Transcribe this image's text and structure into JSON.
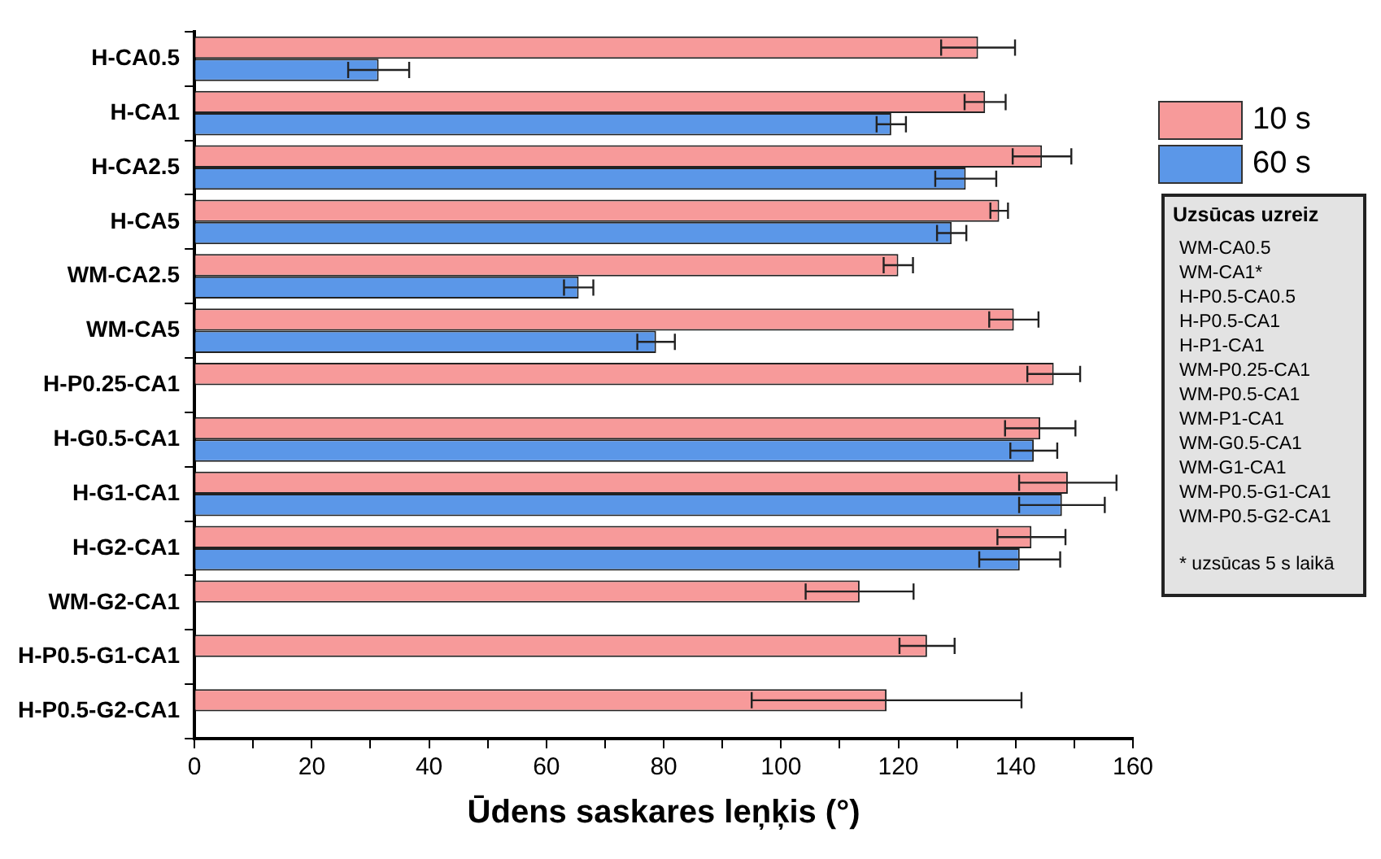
{
  "chart_data": {
    "type": "bar",
    "orientation": "horizontal",
    "xlabel": "Ūdens saskares leņķis (°)",
    "categories": [
      "H-CA0.5",
      "H-CA1",
      "H-CA2.5",
      "H-CA5",
      "WM-CA2.5",
      "WM-CA5",
      "H-P0.25-CA1",
      "H-G0.5-CA1",
      "H-G1-CA1",
      "H-G2-CA1",
      "WM-G2-CA1",
      "H-P0.5-G1-CA1",
      "H-P0.5-G2-CA1"
    ],
    "series": [
      {
        "name": "10 s",
        "color": "#f79a9a",
        "values": [
          133.6,
          134.8,
          144.5,
          137.2,
          120,
          139.7,
          146.5,
          144.2,
          148.9,
          142.7,
          113.4,
          124.9,
          118
        ],
        "errors": [
          6.3,
          3.5,
          5,
          1.5,
          2.5,
          4.2,
          4.5,
          6,
          8.3,
          5.8,
          9.2,
          4.7,
          23
        ]
      },
      {
        "name": "60 s",
        "color": "#5b97e8",
        "values": [
          31.4,
          118.8,
          131.5,
          129.1,
          65.5,
          78.7,
          null,
          143.1,
          147.9,
          140.7,
          null,
          null,
          null
        ],
        "errors": [
          5.2,
          2.5,
          5.2,
          2.5,
          2.5,
          3.2,
          null,
          4,
          7.3,
          6.9,
          null,
          null,
          null
        ]
      }
    ],
    "xlim": [
      0,
      160
    ],
    "xticks": [
      0,
      {
        "value": 10,
        "label": null
      },
      20,
      {
        "value": 30,
        "label": null
      },
      40,
      {
        "value": 50,
        "label": null
      },
      60,
      {
        "value": 70,
        "label": null
      },
      80,
      {
        "value": 90,
        "label": null
      },
      100,
      {
        "value": 110,
        "label": null
      },
      120,
      {
        "value": 130,
        "label": null
      },
      140,
      {
        "value": 150,
        "label": null
      },
      160
    ],
    "grid": false,
    "legend": "top right",
    "annotations": [
      "Uzsūcas uzreiz",
      "WM-CA0.5",
      "WM-CA1*",
      "H-P0.5-CA0.5",
      "H-P0.5-CA1",
      "H-P1-CA1",
      "WM-P0.25-CA1",
      "WM-P0.5-CA1",
      "WM-P1-CA1",
      "WM-G0.5-CA1",
      "WM-G1-CA1",
      "WM-P0.5-G1-CA1",
      "WM-P0.5-G2-CA1",
      "* uzsūcas 5 s laikā"
    ]
  }
}
